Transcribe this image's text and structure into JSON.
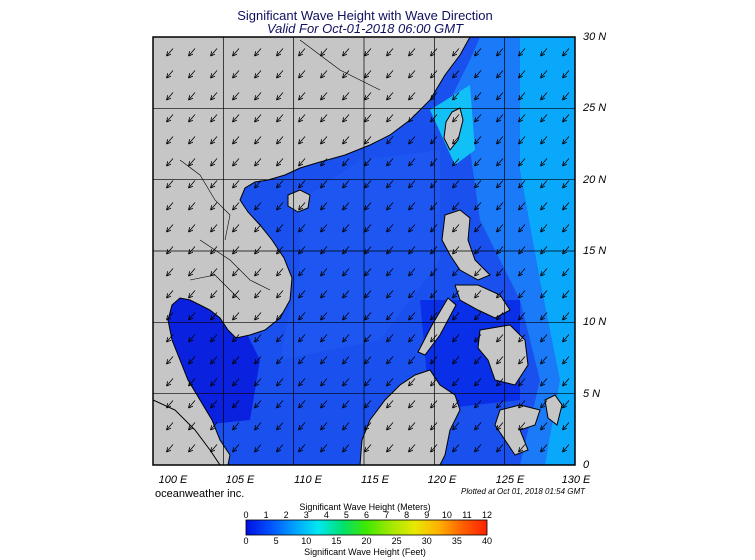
{
  "header": {
    "title": "Significant Wave Height with Wave Direction",
    "subtitle": "Valid For Oct-01-2018 06:00 GMT"
  },
  "map": {
    "region": "South China Sea / Western Pacific",
    "lon_range": [
      100,
      130
    ],
    "lat_range": [
      0,
      30
    ],
    "lat_labels": [
      "30 N",
      "25 N",
      "20 N",
      "15 N",
      "10 N",
      "5 N",
      "0"
    ],
    "lon_labels": [
      "100 E",
      "105 E",
      "110 E",
      "115 E",
      "120 E",
      "125 E",
      "130 E"
    ],
    "land_color": "#c6c6c6",
    "border_color": "#000000",
    "grid_on": true,
    "arrow_direction": "toward south-west (swell from north-east)"
  },
  "footer": {
    "credit": "oceanweather inc.",
    "plotted": "Plotted at Oct 01, 2018 01:54 GMT"
  },
  "colorbar": {
    "meters_title": "Significant Wave Height (Meters)",
    "feet_title": "Significant Wave Height (Feet)",
    "meters_ticks": [
      "0",
      "1",
      "2",
      "3",
      "4",
      "5",
      "6",
      "7",
      "8",
      "9",
      "10",
      "11",
      "12"
    ],
    "feet_ticks": [
      "0",
      "5",
      "10",
      "15",
      "20",
      "25",
      "30",
      "35",
      "40"
    ],
    "colors": [
      "#0010e0",
      "#0050ff",
      "#00a0ff",
      "#00e8f0",
      "#00e070",
      "#40e800",
      "#a0e800",
      "#e8e800",
      "#ffb000",
      "#ff6000",
      "#ff2000"
    ]
  }
}
